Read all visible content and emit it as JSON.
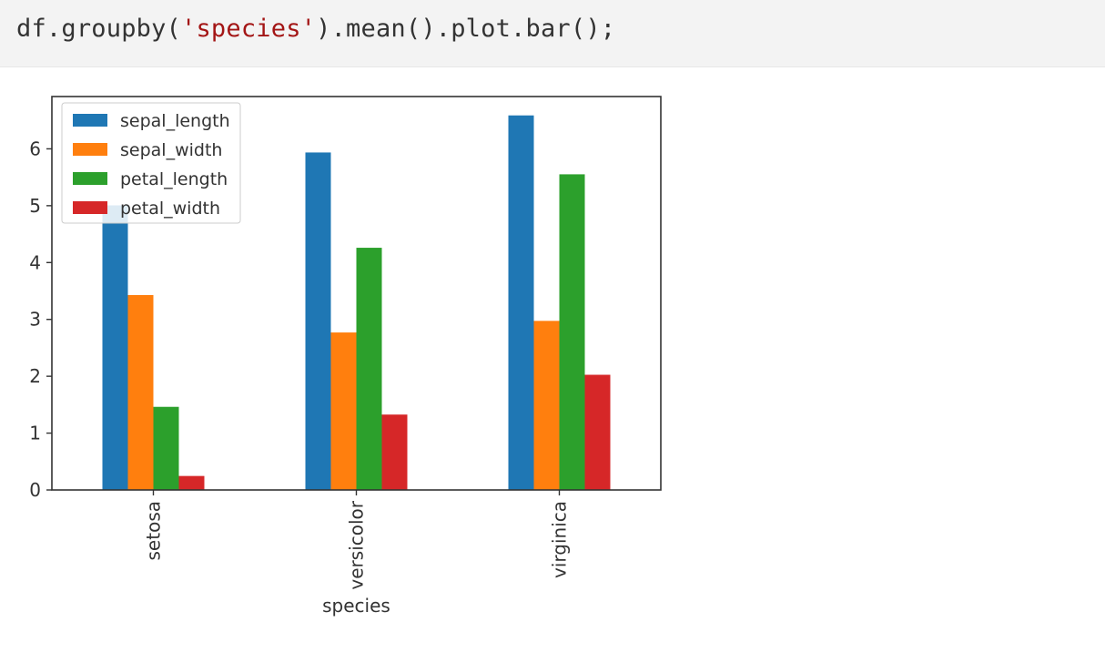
{
  "code": {
    "prefix": "df.groupby(",
    "string": "'species'",
    "suffix": ").mean().plot.bar();"
  },
  "chart_data": {
    "type": "bar",
    "title": "",
    "xlabel": "species",
    "ylabel": "",
    "categories": [
      "setosa",
      "versicolor",
      "virginica"
    ],
    "series": [
      {
        "name": "sepal_length",
        "color": "#1f77b4",
        "values": [
          5.006,
          5.936,
          6.588
        ]
      },
      {
        "name": "sepal_width",
        "color": "#ff7f0e",
        "values": [
          3.428,
          2.77,
          2.974
        ]
      },
      {
        "name": "petal_length",
        "color": "#2ca02c",
        "values": [
          1.462,
          4.26,
          5.552
        ]
      },
      {
        "name": "petal_width",
        "color": "#d62728",
        "values": [
          0.246,
          1.326,
          2.026
        ]
      }
    ],
    "ylim": [
      0,
      6.92
    ],
    "yticks": [
      0,
      1,
      2,
      3,
      4,
      5,
      6
    ],
    "legend_position": "top-left",
    "grid": false,
    "xtick_rotation": "vertical"
  }
}
